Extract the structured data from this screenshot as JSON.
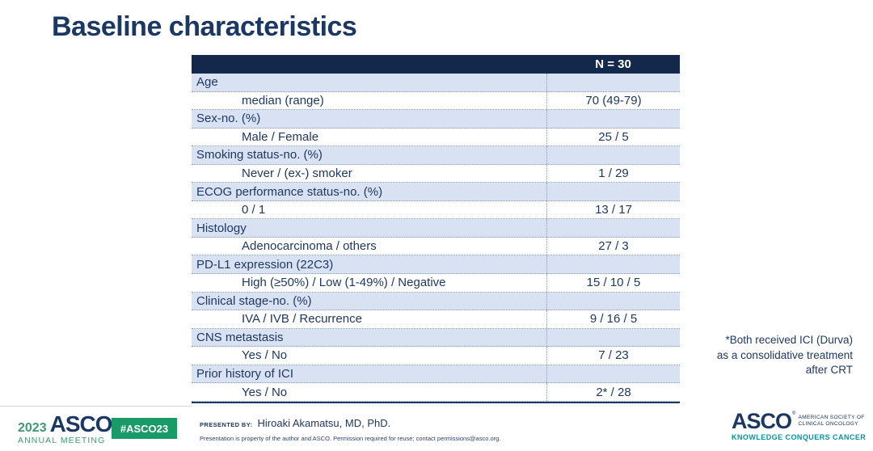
{
  "title": "Baseline characteristics",
  "table": {
    "header": "N = 30",
    "rows": [
      {
        "label": "Age",
        "value": "",
        "type": "category"
      },
      {
        "label": "median (range)",
        "value": "70 (49-79)",
        "type": "sub"
      },
      {
        "label": "Sex-no. (%)",
        "value": "",
        "type": "category"
      },
      {
        "label": "Male / Female",
        "value": "25 / 5",
        "type": "sub"
      },
      {
        "label": "Smoking status-no. (%)",
        "value": "",
        "type": "category"
      },
      {
        "label": "Never / (ex-) smoker",
        "value": "1 / 29",
        "type": "sub"
      },
      {
        "label": "ECOG performance status-no. (%)",
        "value": "",
        "type": "category"
      },
      {
        "label": "0 / 1",
        "value": "13 / 17",
        "type": "sub"
      },
      {
        "label": "Histology",
        "value": "",
        "type": "category"
      },
      {
        "label": "Adenocarcinoma / others",
        "value": "27 / 3",
        "type": "sub"
      },
      {
        "label": "PD-L1 expression (22C3)",
        "value": "",
        "type": "category"
      },
      {
        "label": "High (≥50%) / Low (1-49%) / Negative",
        "value": "15 / 10 / 5",
        "type": "sub"
      },
      {
        "label": "Clinical stage-no. (%)",
        "value": "",
        "type": "category"
      },
      {
        "label": "IVA / IVB / Recurrence",
        "value": "9 / 16 / 5",
        "type": "sub"
      },
      {
        "label": "CNS metastasis",
        "value": "",
        "type": "category"
      },
      {
        "label": "Yes / No",
        "value": "7 / 23",
        "type": "sub"
      },
      {
        "label": "Prior history of ICI",
        "value": "",
        "type": "category"
      },
      {
        "label": "Yes / No",
        "value": "2* / 28",
        "type": "sub"
      }
    ]
  },
  "annotation": {
    "lines": [
      "*Both received ICI (Durva)",
      "as a consolidative treatment",
      "after CRT"
    ]
  },
  "footer": {
    "meeting_logo": {
      "year": "2023",
      "brand": "ASCO",
      "mark": "®",
      "subtitle": "ANNUAL MEETING"
    },
    "hashtag": "#ASCO23",
    "presented_by_label": "PRESENTED BY:",
    "presenter": "Hiroaki Akamatsu, MD, PhD.",
    "disclaimer": "Presentation is property of the author and ASCO. Permission required for reuse; contact permissions@asco.org.",
    "asco_logo": {
      "brand": "ASCO",
      "mark": "®",
      "org_line1": "AMERICAN SOCIETY OF",
      "org_line2": "CLINICAL ONCOLOGY",
      "tagline": "KNOWLEDGE CONQUERS CANCER"
    }
  },
  "colors": {
    "navy_text": "#1F3864",
    "header_bg": "#14284B",
    "row_highlight": "#D9E2F2",
    "green": "#3E9B70",
    "badge_green": "#199B67",
    "teal": "#0096AA"
  }
}
